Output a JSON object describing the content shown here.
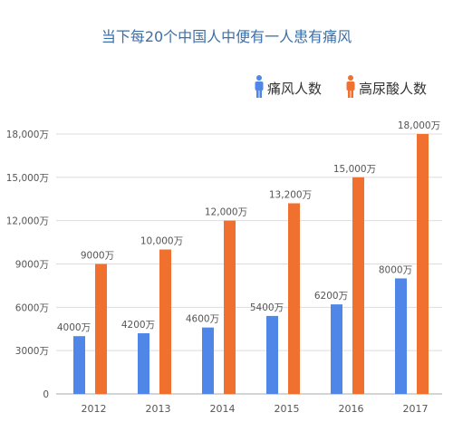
{
  "chart_data": {
    "type": "bar",
    "title": "当下每20个中国人中便有一人患有痛风",
    "categories": [
      "2012",
      "2013",
      "2014",
      "2015",
      "2016",
      "2017"
    ],
    "series": [
      {
        "name": "痛风人数",
        "values": [
          4000,
          4200,
          4600,
          5400,
          6200,
          8000
        ],
        "labels": [
          "4000万",
          "4200万",
          "4600万",
          "5400万",
          "6200万",
          "8000万"
        ],
        "color": "#4f86e8"
      },
      {
        "name": "高尿酸人数",
        "values": [
          9000,
          10000,
          12000,
          13200,
          15000,
          18000
        ],
        "labels": [
          "9000万",
          "10,000万",
          "12,000万",
          "13,200万",
          "15,000万",
          "18,000万"
        ],
        "color": "#f07030"
      }
    ],
    "yticks": [
      0,
      3000,
      6000,
      9000,
      12000,
      15000,
      18000
    ],
    "ytick_labels": [
      "0",
      "3000万",
      "6000万",
      "9000万",
      "12,000万",
      "15,000万",
      "18,000万"
    ],
    "ylim": [
      0,
      19000
    ],
    "grid": true,
    "legend_position": "top-right",
    "legend_icon": "person-icon",
    "title_color": "#3d6fa8",
    "text_color": "#555555",
    "grid_color": "#dddddd"
  }
}
